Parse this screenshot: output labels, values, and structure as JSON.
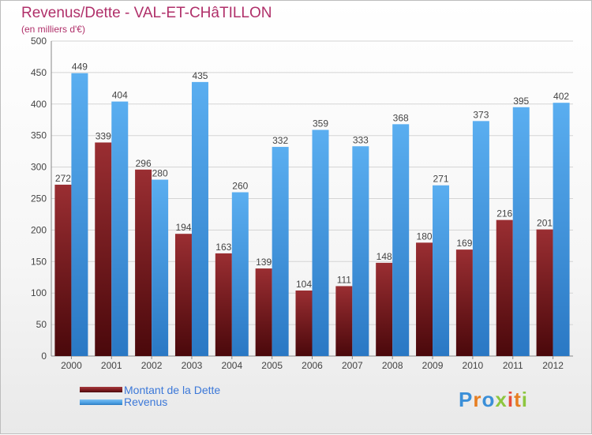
{
  "title": "Revenus/Dette - VAL-ET-CHâTILLON",
  "subtitle": "(en milliers d'€)",
  "logo_text": "Proxiti",
  "colors": {
    "dette": "#7a1a1e",
    "revenus": "#4a9fe3",
    "title": "#b0306a",
    "legend_text": "#3c78d8"
  },
  "chart_data": {
    "type": "bar",
    "categories": [
      "2000",
      "2001",
      "2002",
      "2003",
      "2004",
      "2005",
      "2006",
      "2007",
      "2008",
      "2009",
      "2010",
      "2011",
      "2012"
    ],
    "series": [
      {
        "name": "Montant de la Dette",
        "values": [
          272,
          339,
          296,
          194,
          163,
          139,
          104,
          111,
          148,
          180,
          169,
          216,
          201
        ]
      },
      {
        "name": "Revenus",
        "values": [
          449,
          404,
          280,
          435,
          260,
          332,
          359,
          333,
          368,
          271,
          373,
          395,
          402
        ]
      }
    ],
    "ylim": [
      0,
      500
    ],
    "yticks": [
      0,
      50,
      100,
      150,
      200,
      250,
      300,
      350,
      400,
      450,
      500
    ],
    "grid": true,
    "legend": "bottom-left"
  }
}
